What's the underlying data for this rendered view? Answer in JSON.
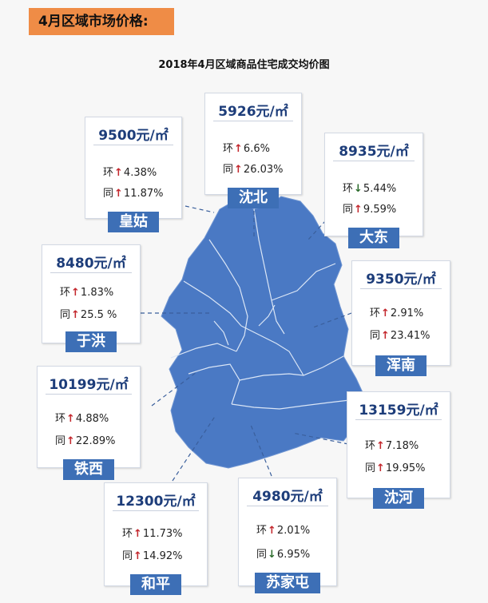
{
  "header": {
    "title": "4月区域市场价格:"
  },
  "chart_title": "2018年4月区域商品住宅成交均价图",
  "colors": {
    "map_fill": "#4a79c4",
    "label_bg": "#3d6fb6",
    "up_arrow": "#c3262c",
    "down_arrow": "#2a6a2a",
    "header_bg": "#ef8c46"
  },
  "labels": {
    "huan": "环",
    "tong": "同"
  },
  "units": {
    "price_unit": "元/㎡"
  },
  "districts": [
    {
      "name": "皇姑",
      "price": "9500",
      "huan": "4.38%",
      "huan_dir": "up",
      "tong": "11.87%",
      "tong_dir": "up"
    },
    {
      "name": "沈北",
      "price": "5926",
      "huan": "6.6%",
      "huan_dir": "up",
      "tong": "26.03%",
      "tong_dir": "up"
    },
    {
      "name": "大东",
      "price": "8935",
      "huan": "5.44%",
      "huan_dir": "down",
      "tong": "9.59%",
      "tong_dir": "up"
    },
    {
      "name": "于洪",
      "price": "8480",
      "huan": "1.83%",
      "huan_dir": "up",
      "tong": "25.5 %",
      "tong_dir": "up"
    },
    {
      "name": "浑南",
      "price": "9350",
      "huan": "2.91%",
      "huan_dir": "up",
      "tong": "23.41%",
      "tong_dir": "up"
    },
    {
      "name": "铁西",
      "price": "10199",
      "huan": "4.88%",
      "huan_dir": "up",
      "tong": "22.89%",
      "tong_dir": "up"
    },
    {
      "name": "沈河",
      "price": "13159",
      "huan": "7.18%",
      "huan_dir": "up",
      "tong": "19.95%",
      "tong_dir": "up"
    },
    {
      "name": "和平",
      "price": "12300",
      "huan": "11.73%",
      "huan_dir": "up",
      "tong": "14.92%",
      "tong_dir": "up"
    },
    {
      "name": "苏家屯",
      "price": "4980",
      "huan": "2.01%",
      "huan_dir": "up",
      "tong": "6.95%",
      "tong_dir": "down"
    }
  ]
}
